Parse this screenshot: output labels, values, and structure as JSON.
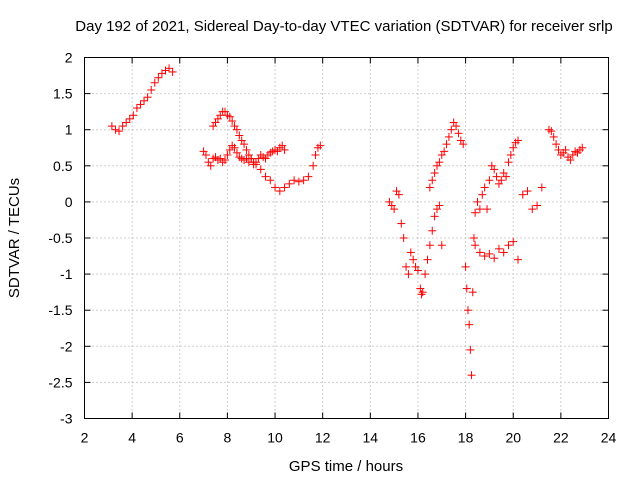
{
  "chart_data": {
    "type": "scatter",
    "title": "Day 192 of 2021, Sidereal Day-to-day VTEC variation (SDTVAR) for receiver srlp",
    "xlabel": "GPS time / hours",
    "ylabel": "SDTVAR / TECUs",
    "xlim": [
      2,
      24
    ],
    "ylim": [
      -3,
      2
    ],
    "xticks": [
      2,
      4,
      6,
      8,
      10,
      12,
      14,
      16,
      18,
      20,
      22,
      24
    ],
    "yticks": [
      -3,
      -2.5,
      -2,
      -1.5,
      -1,
      -0.5,
      0,
      0.5,
      1,
      1.5,
      2
    ],
    "grid": true,
    "marker": "+",
    "series": [
      {
        "name": "SDTVAR",
        "color": "#ff0000",
        "x": [
          3.15,
          3.3,
          3.45,
          3.6,
          3.75,
          3.9,
          4.05,
          4.2,
          4.35,
          4.5,
          4.65,
          4.8,
          4.95,
          5.1,
          5.25,
          5.4,
          5.55,
          5.7,
          7.0,
          7.1,
          7.2,
          7.3,
          7.4,
          7.5,
          7.6,
          7.7,
          7.8,
          7.9,
          8.0,
          8.1,
          8.2,
          8.3,
          8.4,
          8.5,
          8.6,
          8.7,
          8.8,
          8.9,
          9.0,
          9.1,
          9.2,
          9.3,
          9.4,
          9.5,
          9.6,
          9.7,
          9.8,
          9.9,
          10.0,
          10.1,
          10.2,
          10.3,
          10.4,
          7.4,
          7.5,
          7.6,
          7.7,
          7.8,
          7.9,
          8.0,
          8.1,
          8.2,
          8.3,
          8.4,
          8.5,
          8.6,
          8.7,
          8.8,
          8.9,
          9.0,
          9.1,
          9.2,
          9.4,
          9.6,
          9.8,
          10.0,
          10.2,
          10.4,
          10.6,
          10.8,
          11.0,
          11.2,
          11.4,
          11.6,
          11.7,
          11.8,
          11.9,
          14.8,
          14.9,
          15.0,
          15.1,
          15.2,
          15.3,
          15.4,
          15.5,
          15.6,
          15.7,
          15.8,
          15.9,
          16.0,
          16.1,
          16.15,
          16.2,
          16.3,
          16.4,
          16.5,
          16.6,
          16.7,
          16.8,
          16.9,
          17.0,
          16.5,
          16.6,
          16.7,
          16.8,
          16.9,
          17.0,
          17.1,
          17.2,
          17.3,
          17.4,
          17.5,
          17.6,
          17.7,
          17.8,
          17.9,
          18.0,
          18.05,
          18.1,
          18.15,
          18.2,
          18.25,
          18.3,
          18.35,
          18.4,
          18.5,
          18.6,
          18.7,
          18.8,
          18.9,
          19.0,
          19.1,
          19.2,
          19.3,
          19.4,
          19.5,
          19.6,
          19.7,
          19.8,
          19.9,
          20.0,
          20.1,
          20.2,
          18.4,
          18.6,
          18.8,
          19.0,
          19.2,
          19.4,
          19.6,
          19.8,
          20.0,
          20.2,
          20.4,
          20.6,
          20.8,
          21.0,
          21.2,
          21.5,
          21.6,
          21.7,
          21.8,
          21.9,
          22.0,
          22.1,
          22.2,
          22.3,
          22.4,
          22.5,
          22.6,
          22.7,
          22.8,
          22.9
        ],
        "y": [
          1.05,
          1.0,
          0.98,
          1.05,
          1.1,
          1.15,
          1.2,
          1.3,
          1.35,
          1.4,
          1.45,
          1.55,
          1.65,
          1.72,
          1.78,
          1.82,
          1.85,
          1.8,
          0.7,
          0.65,
          0.55,
          0.5,
          0.6,
          0.62,
          0.58,
          0.6,
          0.55,
          0.58,
          0.65,
          0.72,
          0.78,
          0.75,
          0.68,
          0.62,
          0.6,
          0.58,
          0.6,
          0.55,
          0.6,
          0.52,
          0.55,
          0.6,
          0.65,
          0.62,
          0.6,
          0.65,
          0.68,
          0.7,
          0.72,
          0.7,
          0.75,
          0.78,
          0.72,
          1.05,
          1.1,
          1.15,
          1.2,
          1.25,
          1.25,
          1.2,
          1.18,
          1.12,
          1.05,
          1.0,
          0.92,
          0.85,
          0.8,
          0.72,
          0.65,
          0.6,
          0.55,
          0.52,
          0.45,
          0.35,
          0.3,
          0.2,
          0.15,
          0.2,
          0.25,
          0.3,
          0.28,
          0.3,
          0.35,
          0.5,
          0.65,
          0.75,
          0.78,
          0.0,
          -0.05,
          -0.1,
          0.15,
          0.1,
          -0.3,
          -0.5,
          -0.9,
          -1.0,
          -0.7,
          -0.8,
          -0.9,
          -0.95,
          -1.2,
          -1.28,
          -1.25,
          -1.0,
          -0.8,
          -0.6,
          -0.4,
          -0.2,
          -0.1,
          -0.05,
          -0.6,
          0.2,
          0.3,
          0.4,
          0.5,
          0.55,
          0.65,
          0.7,
          0.8,
          0.9,
          1.0,
          1.1,
          1.05,
          0.95,
          0.85,
          0.8,
          -0.9,
          -1.2,
          -1.5,
          -1.7,
          -2.05,
          -2.4,
          -1.25,
          -0.5,
          -0.15,
          0.0,
          -0.1,
          0.1,
          0.2,
          -0.1,
          0.3,
          0.5,
          0.45,
          0.35,
          0.25,
          0.3,
          0.4,
          0.35,
          0.55,
          0.65,
          0.75,
          0.82,
          0.85,
          -0.6,
          -0.7,
          -0.75,
          -0.72,
          -0.78,
          -0.65,
          -0.7,
          -0.6,
          -0.55,
          -0.8,
          0.1,
          0.15,
          -0.1,
          -0.05,
          0.2,
          1.0,
          0.98,
          0.9,
          0.8,
          0.72,
          0.65,
          0.68,
          0.72,
          0.62,
          0.58,
          0.65,
          0.7,
          0.68,
          0.72,
          0.75
        ]
      }
    ]
  }
}
